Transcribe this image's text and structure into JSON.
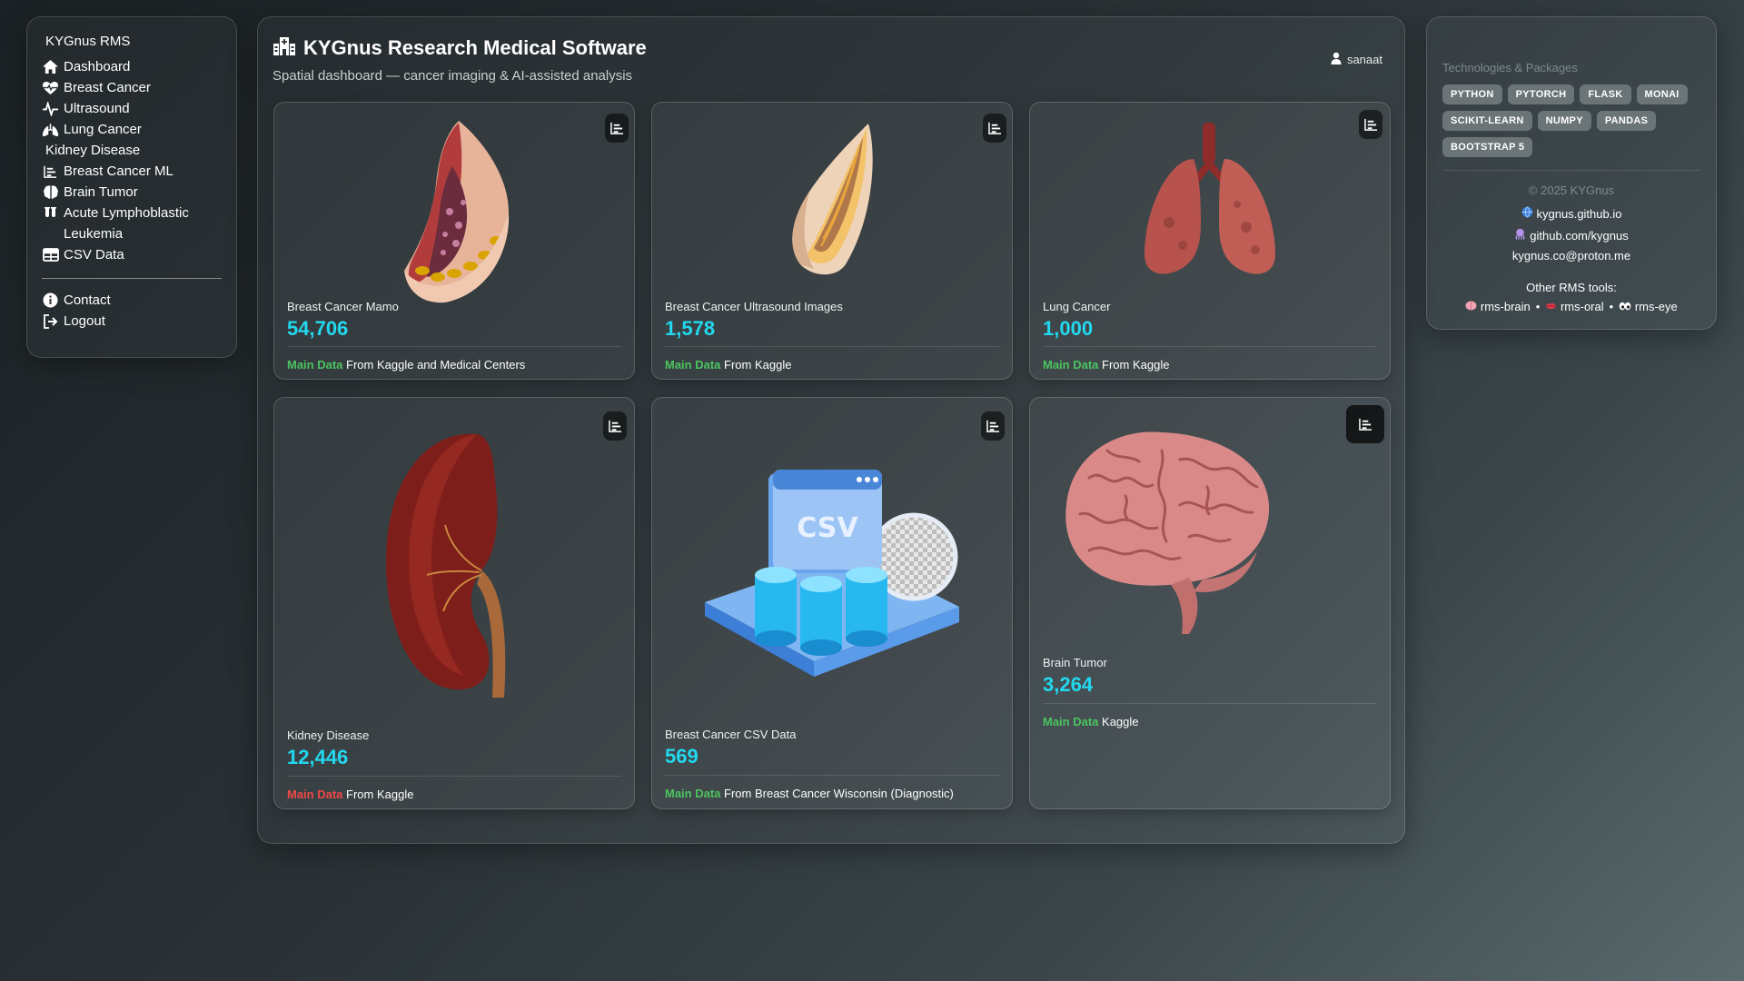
{
  "sidebar": {
    "brand": "KYGnus RMS",
    "items": [
      {
        "label": "Dashboard",
        "icon": "house-icon"
      },
      {
        "label": "Breast Cancer",
        "icon": "heart-pulse-icon"
      },
      {
        "label": "Ultrasound",
        "icon": "pulse-icon"
      },
      {
        "label": "Lung Cancer",
        "icon": "lungs-icon"
      },
      {
        "label": "Kidney Disease",
        "icon": ""
      },
      {
        "label": "Breast Cancer ML",
        "icon": "bar-chart-icon"
      },
      {
        "label": "Brain Tumor",
        "icon": "brain-icon"
      },
      {
        "label": "Acute Lymphoblastic Leukemia",
        "icon": "test-tubes-icon"
      },
      {
        "label": "CSV Data",
        "icon": "table-icon"
      }
    ],
    "footer_items": [
      {
        "label": "Contact",
        "icon": "info-icon"
      },
      {
        "label": "Logout",
        "icon": "logout-icon"
      }
    ]
  },
  "header": {
    "title": "KYGnus Research Medical Software",
    "subtitle": "Spatial dashboard — cancer imaging & AI-assisted analysis",
    "user": "sanaat"
  },
  "cards": [
    {
      "label": "Breast Cancer Mamo",
      "value": "54,706",
      "tag": "Main Data",
      "source": "From Kaggle and Medical Centers",
      "tag_color": "#4cc460",
      "image": "breast-anatomy-image"
    },
    {
      "label": "Breast Cancer Ultrasound Images",
      "value": "1,578",
      "tag": "Main Data",
      "source": "From Kaggle",
      "tag_color": "#4cc460",
      "image": "breast-section-image"
    },
    {
      "label": "Lung Cancer",
      "value": "1,000",
      "tag": "Main Data",
      "source": "From Kaggle",
      "tag_color": "#4cc460",
      "image": "lungs-image"
    },
    {
      "label": "Kidney Disease",
      "value": "12,446",
      "tag": "Main Data",
      "source": "From Kaggle",
      "tag_color": "#f04848",
      "image": "kidney-image"
    },
    {
      "label": "Breast Cancer CSV Data",
      "value": "569",
      "tag": "Main Data",
      "source": "From Breast Cancer Wisconsin (Diagnostic)",
      "tag_color": "#4cc460",
      "image": "csv-database-image",
      "image_text": "CSV"
    },
    {
      "label": "Brain Tumor",
      "value": "3,264",
      "tag": "Main Data",
      "source": "Kaggle",
      "tag_color": "#4cc460",
      "image": "brain-image"
    }
  ],
  "right_panel": {
    "tech_title": "Technologies & Packages",
    "badges": [
      "PYTHON",
      "PYTORCH",
      "FLASK",
      "MONAI",
      "SCIKIT-LEARN",
      "NUMPY",
      "PANDAS",
      "BOOTSTRAP 5"
    ],
    "copyright": "© 2025 KYGnus",
    "website": "kygnus.github.io",
    "github": "github.com/kygnus",
    "email": "kygnus.co@proton.me",
    "other_title": "Other RMS tools:",
    "tools": [
      "rms-brain",
      "rms-oral",
      "rms-eye"
    ],
    "separator": "•"
  },
  "colors": {
    "accent": "#22d8ee",
    "main_data_green": "#4cc460",
    "main_data_red": "#f04848",
    "badge": "#6b7476"
  }
}
